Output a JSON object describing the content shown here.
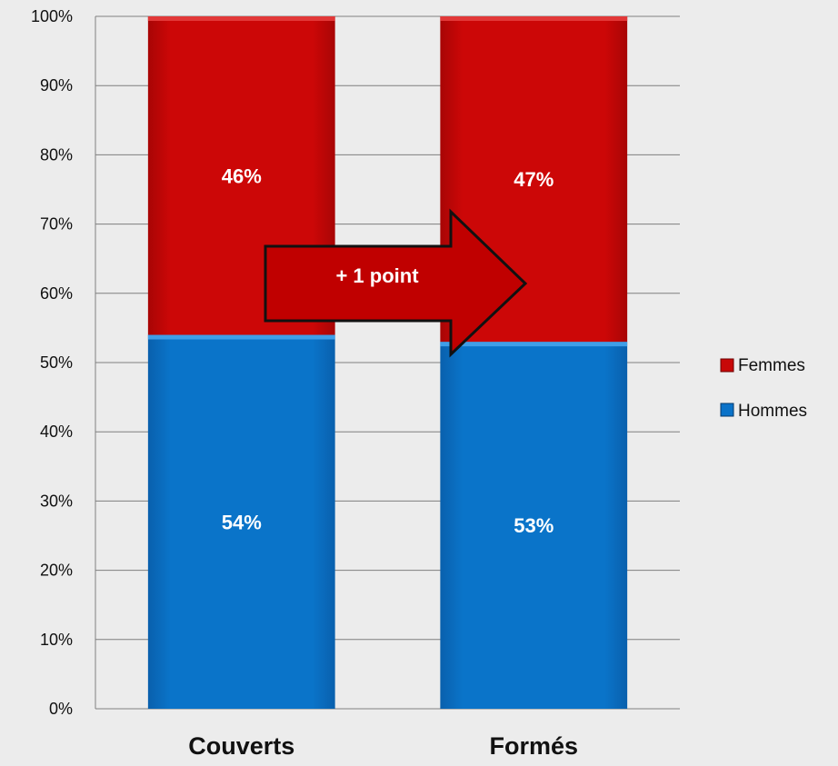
{
  "chart_data": {
    "type": "bar",
    "stacked": true,
    "categories": [
      "Couverts",
      "Formés"
    ],
    "series": [
      {
        "name": "Hommes",
        "values": [
          54,
          53
        ],
        "labels": [
          "54%",
          "53%"
        ],
        "color": "#0a72c8"
      },
      {
        "name": "Femmes",
        "values": [
          46,
          47
        ],
        "labels": [
          "46%",
          "47%"
        ],
        "color": "#c80808"
      }
    ],
    "ylim": [
      0,
      100
    ],
    "yticks": [
      "0%",
      "10%",
      "20%",
      "30%",
      "40%",
      "50%",
      "60%",
      "70%",
      "80%",
      "90%",
      "100%"
    ],
    "grid": true,
    "legend_position": "right",
    "legend": [
      "Femmes",
      "Hommes"
    ],
    "annotation": {
      "text": "+ 1 point",
      "color": "#c00000",
      "shape": "arrow-right"
    }
  }
}
